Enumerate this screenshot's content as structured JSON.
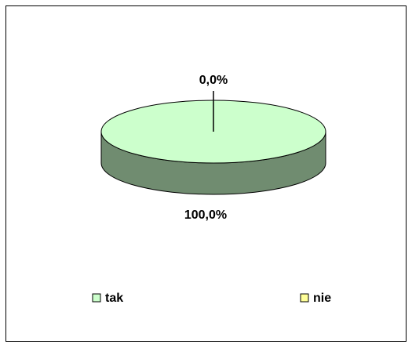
{
  "chart_data": {
    "type": "pie3d",
    "categories": [
      "tak",
      "nie"
    ],
    "values": [
      100,
      0
    ],
    "value_labels": [
      "100,0%",
      "0,0%"
    ],
    "colors": [
      "#ccffcc",
      "#ffff99"
    ],
    "legend": "bottom"
  }
}
